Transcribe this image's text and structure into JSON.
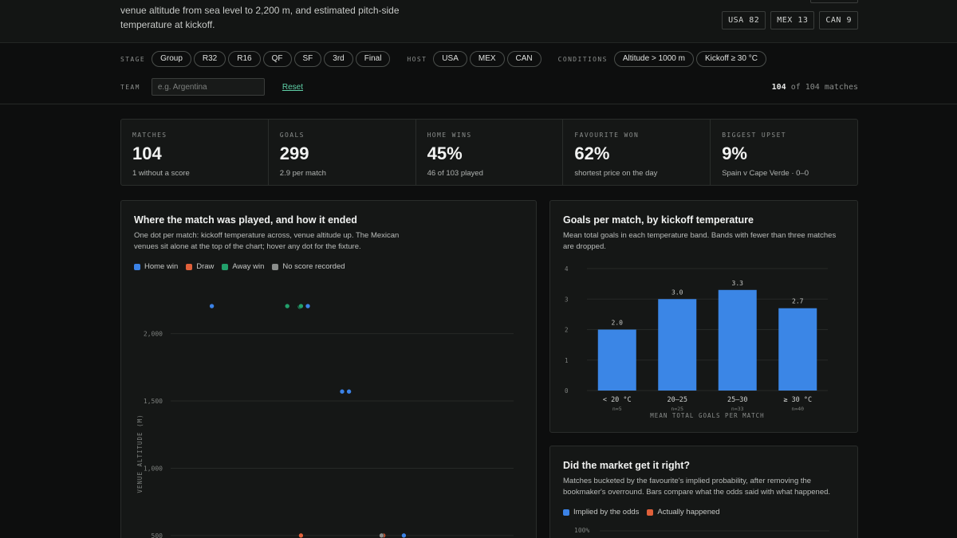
{
  "header": {
    "intro": "venue altitude from sea level to 2,200 m, and estimated pitch-side temperature at kickoff.",
    "host_counts": [
      {
        "label": "USA 82"
      },
      {
        "label": "MEX 13"
      },
      {
        "label": "CAN 9"
      }
    ]
  },
  "filters": {
    "stage_label": "STAGE",
    "stages": [
      "Group",
      "R32",
      "R16",
      "QF",
      "SF",
      "3rd",
      "Final"
    ],
    "host_label": "HOST",
    "hosts": [
      "USA",
      "MEX",
      "CAN"
    ],
    "conditions_label": "CONDITIONS",
    "conditions": [
      "Altitude > 1000 m",
      "Kickoff ≥ 30 °C"
    ],
    "team_label": "TEAM",
    "team_placeholder": "e.g. Argentina",
    "team_value": "",
    "reset_label": "Reset",
    "match_count_shown": "104",
    "match_count_rest": "of 104 matches"
  },
  "kpis": [
    {
      "label": "MATCHES",
      "value": "104",
      "sub": "1 without a score"
    },
    {
      "label": "GOALS",
      "value": "299",
      "sub": "2.9 per match"
    },
    {
      "label": "HOME WINS",
      "value": "45%",
      "sub": "46 of 103 played"
    },
    {
      "label": "FAVOURITE WON",
      "value": "62%",
      "sub": "shortest price on the day"
    },
    {
      "label": "BIGGEST UPSET",
      "value": "9%",
      "sub": "Spain v Cape Verde · 0–0"
    }
  ],
  "colors": {
    "home_win": "#3b82e6",
    "draw": "#e0603a",
    "away_win": "#22a06b",
    "no_score": "#8a8d8b",
    "bar": "#3b86e6"
  },
  "scatter_panel": {
    "title": "Where the match was played, and how it ended",
    "desc_line1": "One dot per match: kickoff temperature across, venue altitude up. The Mexican",
    "desc_line2": "venues sit alone at the top of the chart; hover any dot for the fixture.",
    "legend": [
      "Home win",
      "Draw",
      "Away win",
      "No score recorded"
    ]
  },
  "temp_panel": {
    "title": "Goals per match, by kickoff temperature",
    "desc_line1": "Mean total goals in each temperature band. Bands with fewer than three matches",
    "desc_line2": "are dropped."
  },
  "market_panel": {
    "title": "Did the market get it right?",
    "desc_line1": "Matches bucketed by the favourite's implied probability, after removing the",
    "desc_line2": "bookmaker's overround. Bars compare what the odds said with what happened.",
    "legend": [
      "Implied by the odds",
      "Actually happened"
    ],
    "y_top_tick": "100%"
  },
  "chart_data": [
    {
      "type": "scatter",
      "title": "Where the match was played, and how it ended",
      "ylabel": "VENUE ALTITUDE (M)",
      "y_ticks": [
        "2,000",
        "1,500",
        "1,000",
        "500"
      ],
      "ylim": [
        440,
        2300
      ],
      "series": [
        {
          "name": "Home win",
          "points": [
            {
              "x": 0.12,
              "y": 2205
            },
            {
              "x": 0.4,
              "y": 2205
            },
            {
              "x": 0.5,
              "y": 1570
            },
            {
              "x": 0.52,
              "y": 1570
            },
            {
              "x": 0.68,
              "y": 500
            }
          ]
        },
        {
          "name": "Draw",
          "points": [
            {
              "x": 0.38,
              "y": 500
            },
            {
              "x": 0.62,
              "y": 500
            }
          ]
        },
        {
          "name": "Away win",
          "points": [
            {
              "x": 0.34,
              "y": 2205
            },
            {
              "x": 0.377,
              "y": 2200
            },
            {
              "x": 0.38,
              "y": 2205
            }
          ]
        },
        {
          "name": "No score recorded",
          "points": [
            {
              "x": 0.615,
              "y": 500
            }
          ]
        }
      ]
    },
    {
      "type": "bar",
      "title": "Goals per match, by kickoff temperature",
      "categories": [
        "< 20 °C",
        "20–25",
        "25–30",
        "≥ 30 °C"
      ],
      "counts": [
        "n=5",
        "n=25",
        "n=33",
        "n=40"
      ],
      "values": [
        2.0,
        3.0,
        3.3,
        2.7
      ],
      "value_labels": [
        "2.0",
        "3.0",
        "3.3",
        "2.7"
      ],
      "y_ticks": [
        "0",
        "1",
        "2",
        "3",
        "4"
      ],
      "ylim": [
        0,
        4
      ],
      "xlabel": "MEAN TOTAL GOALS PER MATCH",
      "grid": true
    }
  ]
}
